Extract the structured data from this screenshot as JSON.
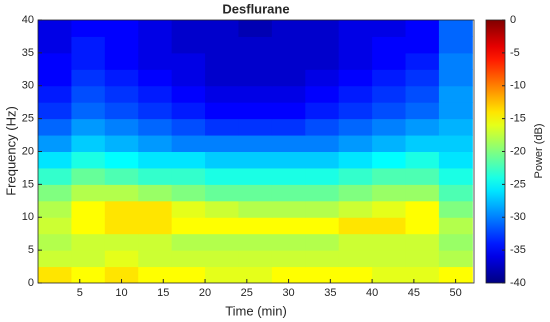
{
  "chart_data": {
    "type": "heatmap",
    "title": "Desflurane",
    "x_label": "Time (min)",
    "y_label": "Frequency (Hz)",
    "colorbar_label": "Power (dB)",
    "colormap": "jet",
    "x": [
      2,
      6,
      10,
      14,
      18,
      22,
      26,
      30,
      34,
      38,
      42,
      46,
      50
    ],
    "y": [
      1.25,
      3.75,
      6.25,
      8.75,
      11.25,
      13.75,
      16.25,
      18.75,
      21.25,
      23.75,
      26.25,
      28.75,
      31.25,
      33.75,
      36.25,
      38.75
    ],
    "z": [
      [
        -14,
        -15,
        -14,
        -15,
        -15,
        -16,
        -16,
        -15,
        -15,
        -15,
        -16,
        -16,
        -15
      ],
      [
        -17,
        -17,
        -16,
        -17,
        -17,
        -17,
        -17,
        -17,
        -17,
        -17,
        -17,
        -17,
        -18
      ],
      [
        -18,
        -17,
        -17,
        -17,
        -18,
        -18,
        -18,
        -18,
        -18,
        -17,
        -17,
        -17,
        -19
      ],
      [
        -17,
        -15,
        -14,
        -14,
        -15,
        -15,
        -15,
        -15,
        -15,
        -14,
        -14,
        -15,
        -18
      ],
      [
        -18,
        -15,
        -14,
        -14,
        -16,
        -17,
        -18,
        -18,
        -18,
        -17,
        -16,
        -15,
        -20
      ],
      [
        -20,
        -18,
        -18,
        -19,
        -20,
        -21,
        -21,
        -21,
        -21,
        -20,
        -19,
        -19,
        -22
      ],
      [
        -23,
        -21,
        -22,
        -23,
        -23,
        -24,
        -24,
        -24,
        -24,
        -23,
        -22,
        -22,
        -24
      ],
      [
        -26,
        -24,
        -25,
        -26,
        -26,
        -27,
        -27,
        -27,
        -27,
        -26,
        -25,
        -24,
        -26
      ],
      [
        -29,
        -27,
        -28,
        -29,
        -30,
        -30,
        -30,
        -30,
        -30,
        -29,
        -28,
        -27,
        -27
      ],
      [
        -31,
        -29,
        -30,
        -31,
        -32,
        -33,
        -33,
        -33,
        -32,
        -31,
        -30,
        -29,
        -28
      ],
      [
        -33,
        -31,
        -32,
        -33,
        -34,
        -35,
        -35,
        -35,
        -34,
        -33,
        -32,
        -31,
        -29
      ],
      [
        -34,
        -32,
        -33,
        -34,
        -35,
        -36,
        -36,
        -36,
        -35,
        -34,
        -33,
        -32,
        -29
      ],
      [
        -35,
        -33,
        -34,
        -35,
        -36,
        -37,
        -37,
        -37,
        -36,
        -35,
        -34,
        -33,
        -30
      ],
      [
        -35,
        -34,
        -35,
        -36,
        -36,
        -37,
        -37,
        -37,
        -37,
        -36,
        -35,
        -34,
        -30
      ],
      [
        -36,
        -34,
        -35,
        -36,
        -37,
        -37,
        -37,
        -37,
        -37,
        -36,
        -35,
        -35,
        -31
      ],
      [
        -36,
        -35,
        -35,
        -36,
        -37,
        -37,
        -38,
        -37,
        -37,
        -36,
        -36,
        -35,
        -31
      ]
    ],
    "xlim": [
      0,
      52.2
    ],
    "xticks": [
      5,
      10,
      15,
      20,
      25,
      30,
      35,
      40,
      45,
      50
    ],
    "ylim": [
      0,
      40
    ],
    "yticks": [
      0,
      5,
      10,
      15,
      20,
      25,
      30,
      35,
      40
    ],
    "clim": [
      -40,
      0
    ],
    "cticks": [
      0,
      -5,
      -10,
      -15,
      -20,
      -25,
      -30,
      -35,
      -40
    ]
  }
}
